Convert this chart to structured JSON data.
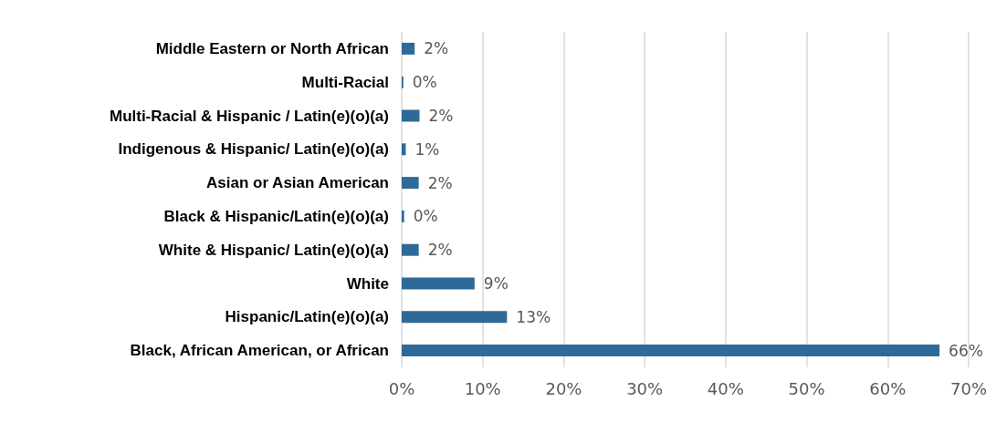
{
  "chart_data": {
    "type": "bar",
    "orientation": "horizontal",
    "categories": [
      "Middle Eastern or North African",
      "Multi-Racial",
      "Multi-Racial & Hispanic / Latin(e)(o)(a)",
      "Indigenous & Hispanic/ Latin(e)(o)(a)",
      "Asian or Asian American",
      "Black & Hispanic/Latin(e)(o)(a)",
      "White & Hispanic/ Latin(e)(o)(a)",
      "White",
      "Hispanic/Latin(e)(o)(a)",
      "Black, African American, or African"
    ],
    "values": [
      1.6,
      0.2,
      2.2,
      0.5,
      2.1,
      0.3,
      2.1,
      9.0,
      13.0,
      66.4
    ],
    "value_labels": [
      "2%",
      "0%",
      "2%",
      "1%",
      "2%",
      "0%",
      "2%",
      "9%",
      "13%",
      "66%"
    ],
    "color": "#2e6a97",
    "xlim": [
      0,
      70
    ],
    "xticks": [
      {
        "value": 0,
        "label": "0%"
      },
      {
        "value": 10,
        "label": "10%"
      },
      {
        "value": 20,
        "label": "20%"
      },
      {
        "value": 30,
        "label": "30%"
      },
      {
        "value": 40,
        "label": "40%"
      },
      {
        "value": 50,
        "label": "50%"
      },
      {
        "value": 60,
        "label": "60%"
      },
      {
        "value": 70,
        "label": "70%"
      }
    ],
    "grid": "x"
  }
}
